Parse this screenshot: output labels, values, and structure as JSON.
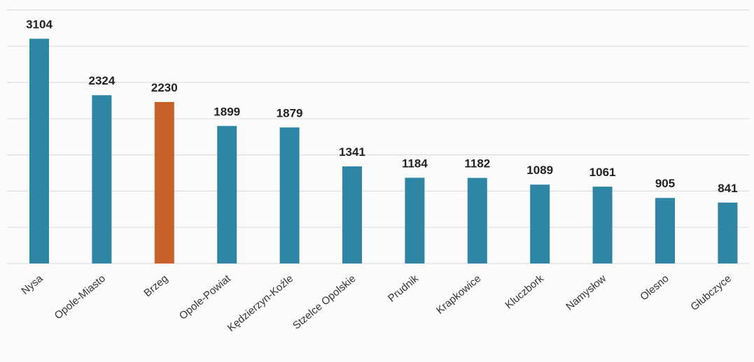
{
  "chart_data": {
    "type": "bar",
    "title": "",
    "xlabel": "",
    "ylabel": "",
    "categories": [
      "Nysa",
      "Opole-Miasto",
      "Brzeg",
      "Opole-Powiat",
      "Kędzierzyn-Koźle",
      "Stzelce Opolskie",
      "Prudnik",
      "Krapkowice",
      "Kluczbork",
      "Namysłow",
      "Olesno",
      "Głubczyce"
    ],
    "values": [
      3104,
      2324,
      2230,
      1899,
      1879,
      1341,
      1184,
      1182,
      1089,
      1061,
      905,
      841
    ],
    "value_labels": [
      "3104",
      "2324",
      "2230",
      "1899",
      "1879",
      "1341",
      "1184",
      "1182",
      "1089",
      "1061",
      "905",
      "841"
    ],
    "highlight_index": 2,
    "ylim": [
      0,
      3500
    ],
    "grid": true,
    "grid_step": 500,
    "colors": {
      "bar": "#2e86a4",
      "highlight": "#c8602a",
      "gridline": "#dcdcdc"
    }
  }
}
